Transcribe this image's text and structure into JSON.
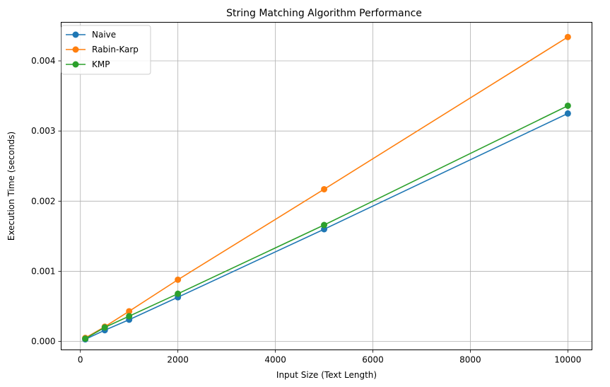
{
  "chart_data": {
    "type": "line",
    "title": "String Matching Algorithm Performance",
    "xlabel": "Input Size (Text Length)",
    "ylabel": "Execution Time (seconds)",
    "x": [
      100,
      500,
      1000,
      2000,
      5000,
      10000
    ],
    "series": [
      {
        "name": "Naive",
        "color": "#1f77b4",
        "values": [
          3e-05,
          0.00016,
          0.00031,
          0.00063,
          0.0016,
          0.00325
        ]
      },
      {
        "name": "Rabin-Karp",
        "color": "#ff7f0e",
        "values": [
          5e-05,
          0.00021,
          0.00043,
          0.00088,
          0.00217,
          0.00434
        ]
      },
      {
        "name": "KMP",
        "color": "#2ca02c",
        "values": [
          4e-05,
          0.0002,
          0.00036,
          0.00068,
          0.00166,
          0.00336
        ]
      }
    ],
    "xlim": [
      -395,
      10495
    ],
    "ylim": [
      -0.00012,
      0.00455
    ],
    "xticks": [
      0,
      2000,
      4000,
      6000,
      8000,
      10000
    ],
    "xtick_labels": [
      "0",
      "2000",
      "4000",
      "6000",
      "8000",
      "10000"
    ],
    "yticks": [
      0,
      0.001,
      0.002,
      0.003,
      0.004
    ],
    "ytick_labels": [
      "0.000",
      "0.001",
      "0.002",
      "0.003",
      "0.004"
    ],
    "grid": true,
    "legend_position": "top-left",
    "marker": "circle"
  }
}
